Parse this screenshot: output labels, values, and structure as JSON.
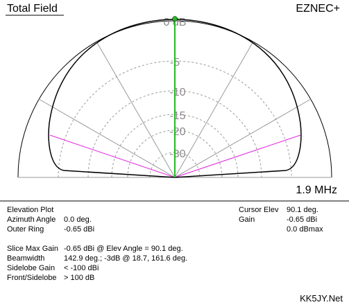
{
  "header": {
    "title": "Total Field",
    "program": "EZNEC+"
  },
  "plot": {
    "ring_labels": [
      "0 dB",
      "-5",
      "-10",
      "-15",
      "-20",
      "-30"
    ],
    "frequency": "1.9 MHz"
  },
  "info": {
    "plot_type": "Elevation Plot",
    "left_rows": [
      [
        "Azimuth Angle",
        "0.0 deg."
      ],
      [
        "Outer Ring",
        "-0.65 dBi"
      ]
    ],
    "right_rows": [
      [
        "Cursor Elev",
        "90.1 deg."
      ],
      [
        "Gain",
        "-0.65 dBi"
      ]
    ],
    "dbmax": "0.0 dBmax"
  },
  "summary": {
    "rows": [
      [
        "Slice Max Gain",
        "-0.65 dBi @ Elev Angle = 90.1 deg."
      ],
      [
        "Beamwidth",
        "142.9 deg.; -3dB @ 18.7, 161.6 deg."
      ],
      [
        "Sidelobe Gain",
        "< -100 dBi"
      ],
      [
        "Front/Sidelobe",
        "> 100 dB"
      ]
    ]
  },
  "footer": {
    "site": "KK5JY.Net"
  }
}
